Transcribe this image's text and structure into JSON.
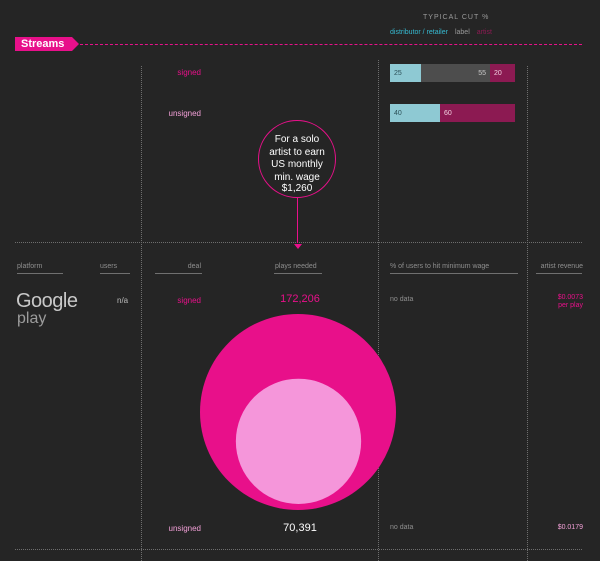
{
  "section_tag": "Streams",
  "typical_cut": {
    "title": "TYPICAL CUT %",
    "legend": [
      {
        "label": "distributor / retailer",
        "color": "#36b9d0"
      },
      {
        "label": "label",
        "color": "#9a9a9a"
      },
      {
        "label": "artist",
        "color": "#8c1a52"
      }
    ]
  },
  "deals": {
    "signed": "signed",
    "unsigned": "unsigned"
  },
  "callout": {
    "lines": [
      "For a solo artist to earn US monthly min. wage",
      "$1,260"
    ]
  },
  "columns": {
    "platform": "platform",
    "users": "users",
    "deal": "deal",
    "plays_needed": "plays needed",
    "pct_users": "% of users to hit minimum wage",
    "artist_revenue": "artist revenue"
  },
  "row": {
    "platform_line1": "Google",
    "platform_line2": "play",
    "users": "n/a",
    "signed": {
      "plays": "172,206",
      "pct": "no data",
      "revenue_line1": "$0.0073",
      "revenue_line2": "per play"
    },
    "unsigned": {
      "plays": "70,391",
      "pct": "no data",
      "revenue": "$0.0179"
    }
  },
  "chart_data": [
    {
      "type": "bar",
      "title": "TYPICAL CUT %",
      "stacked": true,
      "categories": [
        "signed",
        "unsigned"
      ],
      "series": [
        {
          "name": "distributor / retailer",
          "values": [
            25,
            40
          ]
        },
        {
          "name": "label",
          "values": [
            55,
            0
          ]
        },
        {
          "name": "artist",
          "values": [
            20,
            60
          ]
        }
      ]
    },
    {
      "type": "bubble",
      "categories": [
        "signed",
        "unsigned"
      ],
      "values": [
        172206,
        70391
      ]
    }
  ],
  "colors": {
    "accent": "#e8108a",
    "distributor": "#8ec9d3",
    "label": "#4d4d4d",
    "artist": "#8c1a52",
    "signed_bubble": "#e8108a",
    "unsigned_bubble": "#f596da",
    "signed_text": "#e8108a",
    "unsigned_text": "#f3a0d8"
  }
}
